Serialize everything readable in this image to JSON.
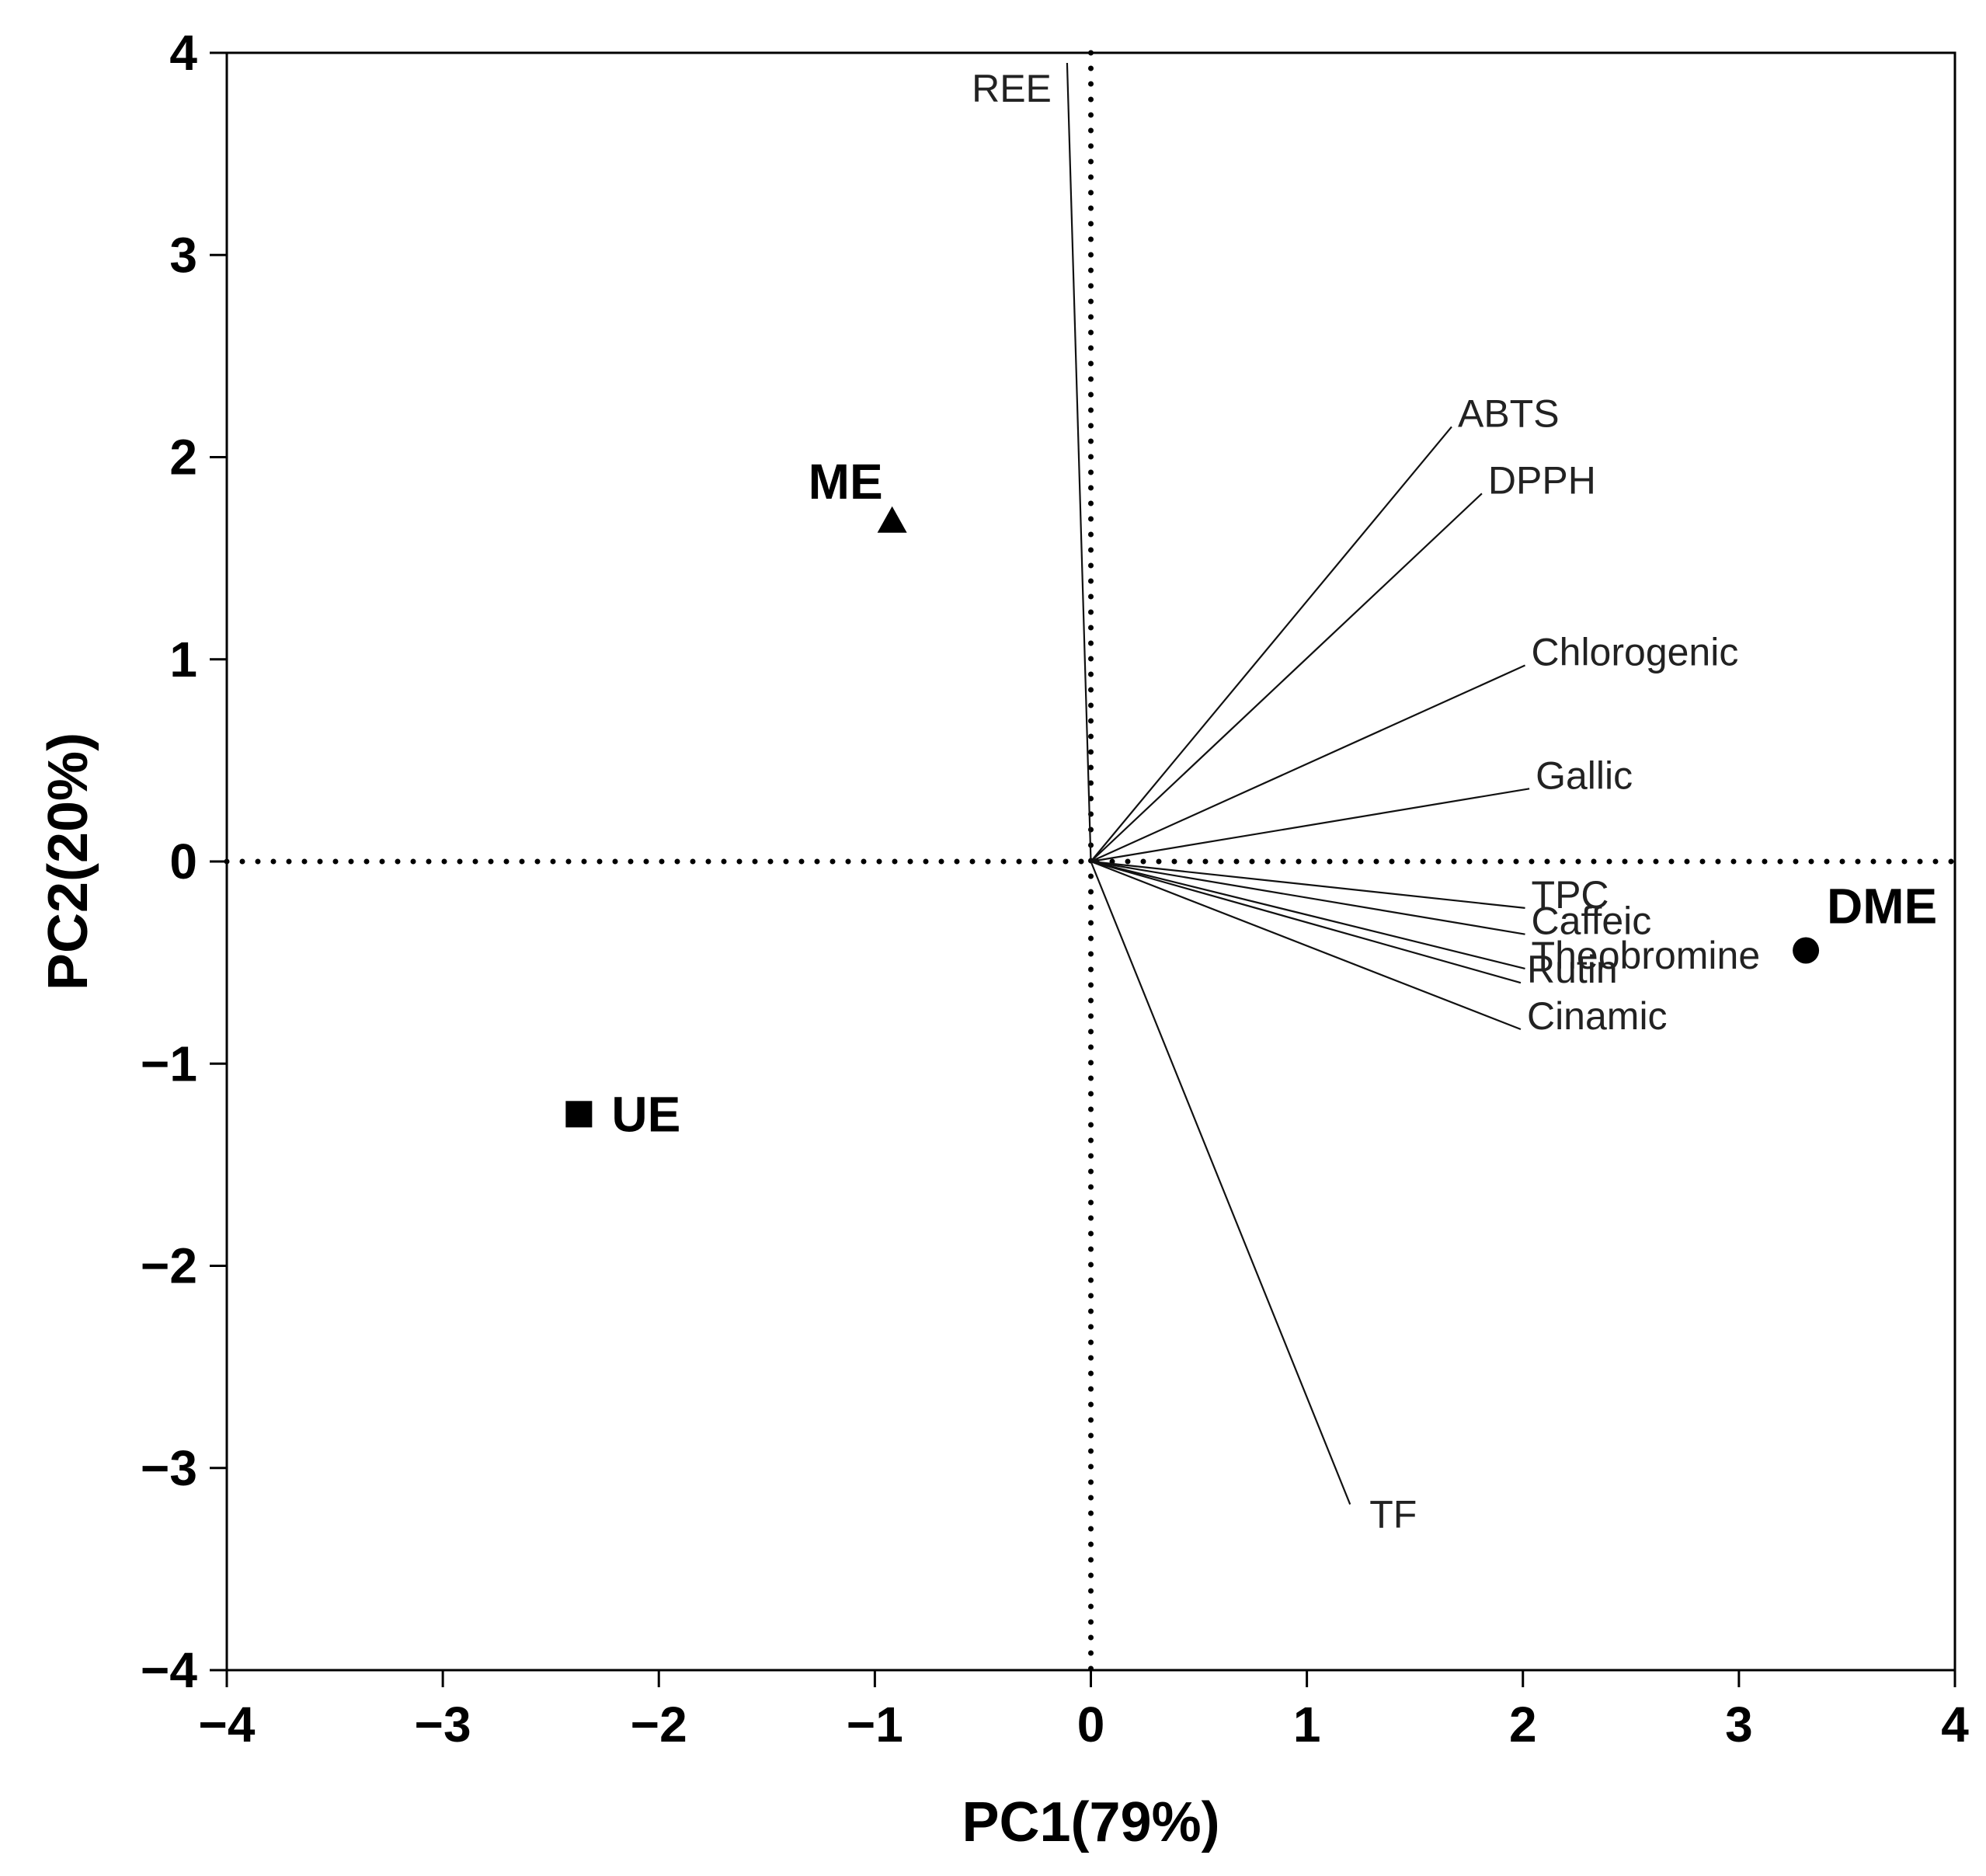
{
  "chart_data": {
    "type": "scatter",
    "subtype": "pca-biplot",
    "xlabel": "PC1(79%)",
    "ylabel": "PC2(20%)",
    "xlim": [
      -4,
      4
    ],
    "ylim": [
      -4,
      4
    ],
    "xticks": [
      "−4",
      "−3",
      "−2",
      "−1",
      "0",
      "1",
      "2",
      "3",
      "4"
    ],
    "yticks": [
      "−4",
      "−3",
      "−2",
      "−1",
      "0",
      "1",
      "2",
      "3",
      "4"
    ],
    "grid": false,
    "zero_lines": "dotted",
    "samples": [
      {
        "name": "ME",
        "x": -0.92,
        "y": 1.68,
        "marker": "triangle"
      },
      {
        "name": "UE",
        "x": -2.37,
        "y": -1.25,
        "marker": "square"
      },
      {
        "name": "DME",
        "x": 3.31,
        "y": -0.44,
        "marker": "circle"
      }
    ],
    "loadings": [
      {
        "name": "REE",
        "x": -0.11,
        "y": 3.95
      },
      {
        "name": "ABTS",
        "x": 1.67,
        "y": 2.15
      },
      {
        "name": "DPPH",
        "x": 1.81,
        "y": 1.82
      },
      {
        "name": "Chlorogenic",
        "x": 2.01,
        "y": 0.97
      },
      {
        "name": "Gallic",
        "x": 2.03,
        "y": 0.36
      },
      {
        "name": "TPC",
        "x": 2.01,
        "y": -0.23
      },
      {
        "name": "Caffeic",
        "x": 2.01,
        "y": -0.36
      },
      {
        "name": "Theobromine",
        "x": 2.01,
        "y": -0.53
      },
      {
        "name": "Rutin",
        "x": 1.99,
        "y": -0.6
      },
      {
        "name": "Cinamic",
        "x": 1.99,
        "y": -0.83
      },
      {
        "name": "TF",
        "x": 1.2,
        "y": -3.18
      }
    ]
  }
}
